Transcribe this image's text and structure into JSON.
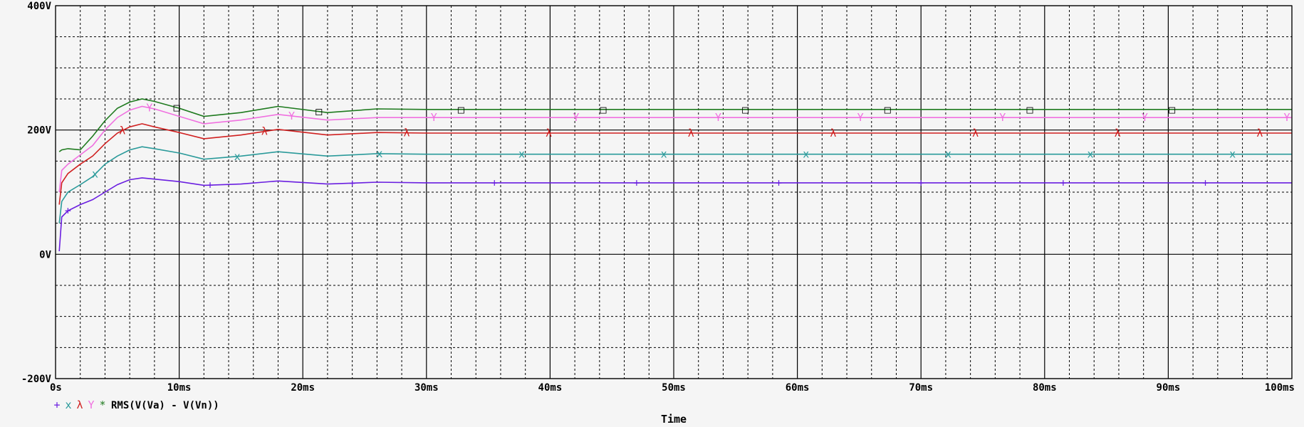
{
  "chart_data": {
    "type": "line",
    "xlabel": "Time",
    "ylabel": "",
    "xlim": [
      0,
      100
    ],
    "ylim": [
      -200,
      400
    ],
    "x_ticks": [
      0,
      10,
      20,
      30,
      40,
      50,
      60,
      70,
      80,
      90,
      100
    ],
    "x_tick_labels": [
      "0s",
      "10ms",
      "20ms",
      "30ms",
      "40ms",
      "50ms",
      "60ms",
      "70ms",
      "80ms",
      "90ms",
      "100ms"
    ],
    "y_ticks": [
      -200,
      0,
      200,
      400
    ],
    "y_tick_labels": [
      "-200V",
      "0V",
      "200V",
      "400V"
    ],
    "grid": true,
    "legend_position": "bottom-left",
    "legend_label": "RMS(V(Va) - V(Vn))",
    "series": [
      {
        "color": "#6a1ee0",
        "marker": "+",
        "x": [
          0.3,
          0.5,
          1,
          2,
          3,
          4,
          5,
          6,
          7,
          8,
          10,
          12,
          15,
          18,
          22,
          26,
          30,
          40,
          50,
          60,
          70,
          80,
          90,
          100
        ],
        "y": [
          5,
          60,
          70,
          80,
          88,
          100,
          112,
          120,
          123,
          121,
          117,
          111,
          113,
          118,
          113,
          116,
          115,
          115,
          115,
          115,
          115,
          115,
          115,
          115
        ]
      },
      {
        "color": "#2a9a9a",
        "marker": "x",
        "x": [
          0.3,
          0.5,
          1,
          2,
          3,
          4,
          5,
          6,
          7,
          8,
          10,
          12,
          15,
          18,
          22,
          26,
          30,
          40,
          50,
          60,
          70,
          80,
          90,
          100
        ],
        "y": [
          50,
          85,
          100,
          112,
          125,
          145,
          158,
          168,
          173,
          170,
          163,
          153,
          158,
          165,
          158,
          162,
          161,
          161,
          161,
          161,
          161,
          161,
          161,
          161
        ]
      },
      {
        "color": "#d02020",
        "marker": "λ",
        "x": [
          0.3,
          0.5,
          1,
          2,
          3,
          4,
          5,
          6,
          7,
          8,
          10,
          12,
          15,
          18,
          22,
          26,
          30,
          40,
          50,
          60,
          70,
          80,
          90,
          100
        ],
        "y": [
          80,
          115,
          130,
          145,
          158,
          178,
          195,
          205,
          210,
          205,
          196,
          186,
          192,
          201,
          192,
          196,
          195,
          195,
          195,
          195,
          195,
          195,
          195,
          195
        ]
      },
      {
        "color": "#f070e0",
        "marker": "Y",
        "x": [
          0.3,
          0.5,
          1,
          2,
          3,
          4,
          5,
          6,
          7,
          8,
          10,
          12,
          15,
          18,
          22,
          26,
          30,
          40,
          50,
          60,
          70,
          80,
          90,
          100
        ],
        "y": [
          100,
          135,
          145,
          160,
          175,
          200,
          220,
          232,
          238,
          234,
          222,
          210,
          216,
          225,
          216,
          220,
          220,
          220,
          220,
          220,
          220,
          220,
          220,
          220
        ]
      },
      {
        "color": "#1e7a1e",
        "marker": "□",
        "x": [
          0.3,
          0.5,
          1,
          2,
          3,
          4,
          5,
          6,
          7,
          8,
          10,
          12,
          15,
          18,
          22,
          26,
          30,
          40,
          50,
          60,
          70,
          80,
          90,
          100
        ],
        "y": [
          165,
          168,
          170,
          168,
          190,
          215,
          235,
          245,
          250,
          246,
          235,
          222,
          228,
          238,
          228,
          234,
          233,
          233,
          233,
          233,
          233,
          233,
          233,
          233
        ]
      }
    ]
  }
}
